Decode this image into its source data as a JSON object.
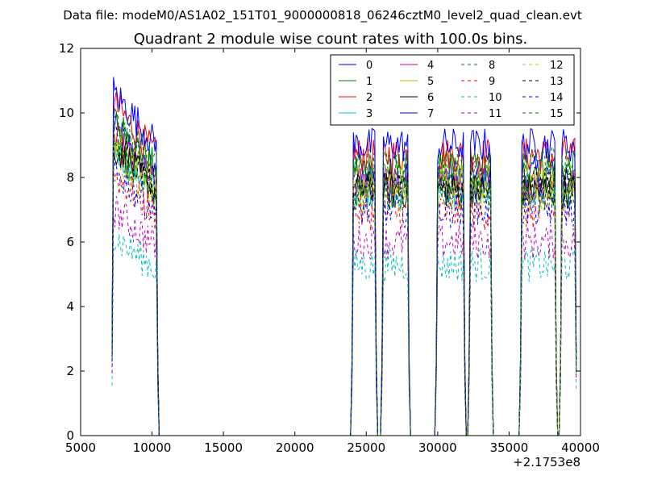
{
  "figure": {
    "suptitle": "Data file: modeM0/AS1A02_151T01_9000000818_06246cztM0_level2_quad_clean.evt"
  },
  "chart_data": {
    "type": "line",
    "title": "Quadrant 2 module wise count rates with 100.0s bins.",
    "xlabel": "",
    "ylabel": "",
    "xlim": [
      5000,
      40000
    ],
    "ylim": [
      0,
      12
    ],
    "x_offset_label": "+2.1753e8",
    "x_ticks": [
      5000,
      10000,
      15000,
      20000,
      25000,
      30000,
      35000,
      40000
    ],
    "x_tick_labels": [
      "5000",
      "10000",
      "15000",
      "20000",
      "25000",
      "30000",
      "35000",
      "40000"
    ],
    "y_ticks": [
      0,
      2,
      4,
      6,
      8,
      10,
      12
    ],
    "y_tick_labels": [
      "0",
      "2",
      "4",
      "6",
      "8",
      "10",
      "12"
    ],
    "grid": false,
    "legend_position": "top-right",
    "legend_columns": 4,
    "segments": [
      {
        "start": 7200,
        "end": 10400
      },
      {
        "start": 24000,
        "end": 25700
      },
      {
        "start": 26100,
        "end": 28000
      },
      {
        "start": 29900,
        "end": 31900
      },
      {
        "start": 32200,
        "end": 33800
      },
      {
        "start": 35800,
        "end": 38300
      },
      {
        "start": 38600,
        "end": 39700
      }
    ],
    "series": [
      {
        "name": "0",
        "color": "#0000ff",
        "dash": "solid",
        "level": 8.1
      },
      {
        "name": "1",
        "color": "#008000",
        "dash": "solid",
        "level": 8.3
      },
      {
        "name": "2",
        "color": "#ff0000",
        "dash": "solid",
        "level": 8.7
      },
      {
        "name": "3",
        "color": "#00bfbf",
        "dash": "solid",
        "level": 7.6
      },
      {
        "name": "4",
        "color": "#bf00bf",
        "dash": "solid",
        "level": 7.8
      },
      {
        "name": "5",
        "color": "#bfbf00",
        "dash": "solid",
        "level": 7.9
      },
      {
        "name": "6",
        "color": "#000000",
        "dash": "solid",
        "level": 7.6
      },
      {
        "name": "7",
        "color": "#0000ff",
        "dash": "solid",
        "level": 9.0
      },
      {
        "name": "8",
        "color": "#008000",
        "dash": "dashed",
        "level": 8.4
      },
      {
        "name": "9",
        "color": "#ff0000",
        "dash": "dashed",
        "level": 6.9
      },
      {
        "name": "10",
        "color": "#00bfbf",
        "dash": "dashed",
        "level": 5.3
      },
      {
        "name": "11",
        "color": "#bf00bf",
        "dash": "dashed",
        "level": 6.0
      },
      {
        "name": "12",
        "color": "#bfbf00",
        "dash": "dashed",
        "level": 7.4
      },
      {
        "name": "13",
        "color": "#000000",
        "dash": "dashed",
        "level": 7.8
      },
      {
        "name": "14",
        "color": "#0000ff",
        "dash": "dashed",
        "level": 7.0
      },
      {
        "name": "15",
        "color": "#008000",
        "dash": "dashed",
        "level": 7.5
      }
    ]
  }
}
